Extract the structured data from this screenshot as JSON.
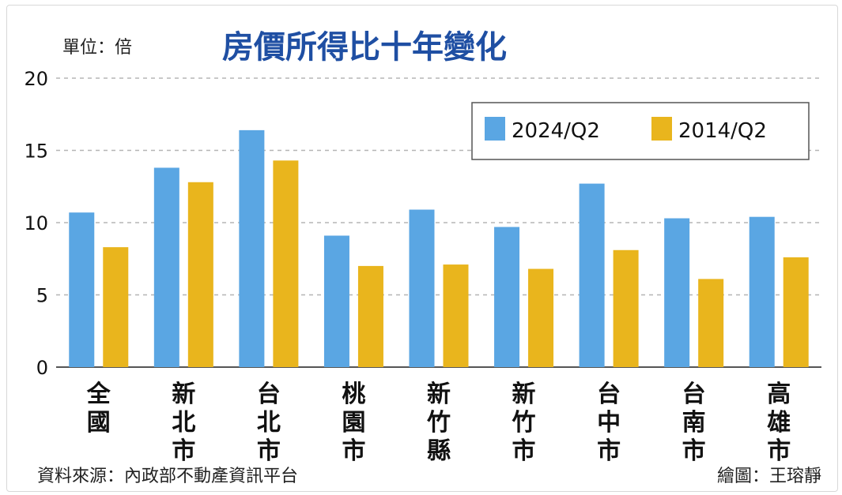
{
  "chart_data": {
    "type": "bar",
    "title": "房價所得比十年變化",
    "unit_label": "單位：倍",
    "categories": [
      "全國",
      "新北市",
      "台北市",
      "桃園市",
      "新竹縣",
      "新竹市",
      "台中市",
      "台南市",
      "高雄市"
    ],
    "series": [
      {
        "name": "2024/Q2",
        "color": "#5aa6e3",
        "values": [
          10.7,
          13.8,
          16.4,
          9.1,
          10.9,
          9.7,
          12.7,
          10.3,
          10.4
        ]
      },
      {
        "name": "2014/Q2",
        "color": "#e9b51d",
        "values": [
          8.3,
          12.8,
          14.3,
          7.0,
          7.1,
          6.8,
          8.1,
          6.1,
          7.6
        ]
      }
    ],
    "yticks": [
      0,
      5,
      10,
      15,
      20
    ],
    "ylim": [
      0,
      20
    ],
    "grid": true,
    "legend_position": "top-right"
  },
  "footer": {
    "source": "資料來源：內政部不動產資訊平台",
    "credit": "繪圖：王瑢靜"
  }
}
